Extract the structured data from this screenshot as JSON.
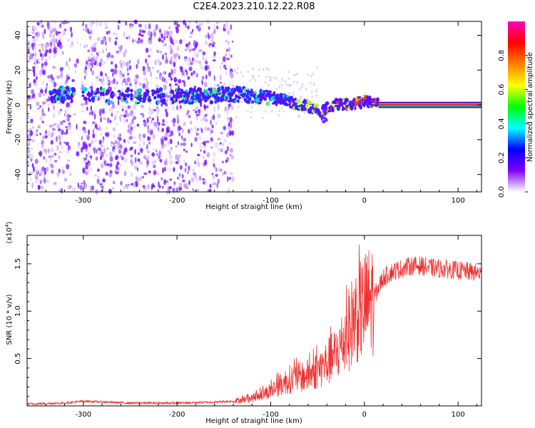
{
  "title": "C2E4.2023.210.12.22.R08",
  "chart_data": [
    {
      "type": "heatmap",
      "xlabel": "Height of straight line (km)",
      "ylabel": "Frequency (Hz)",
      "xlim": [
        -360,
        125
      ],
      "ylim": [
        -50,
        48
      ],
      "xticks": [
        -300,
        -200,
        -100,
        0,
        100
      ],
      "yticks": [
        -40,
        -20,
        0,
        20,
        40
      ],
      "colorbar": {
        "label": "Normalized spectral amplitude",
        "range": [
          0,
          1
        ],
        "ticks": [
          "0.0",
          "0.2",
          "0.4",
          "0.6",
          "0.8"
        ],
        "colors": [
          "#ffffff",
          "#7f00ff",
          "#0000ff",
          "#00ffff",
          "#00ff00",
          "#ffff00",
          "#ff8000",
          "#ff0000",
          "#ff00c0"
        ]
      },
      "ridge": {
        "x": [
          -335,
          -320,
          -300,
          -250,
          -200,
          -170,
          -150,
          -130,
          -110,
          -100,
          -90,
          -75,
          -60,
          -45,
          -40,
          -30,
          -20,
          -10,
          0,
          10,
          125
        ],
        "y": [
          6,
          6,
          6,
          5,
          5,
          5,
          6,
          6,
          5,
          4,
          3,
          1,
          -1,
          -4,
          -2,
          0,
          0,
          1,
          2,
          1,
          0
        ]
      },
      "noise_extent": [
        -360,
        -140
      ],
      "steady_tone_from": 15
    },
    {
      "type": "line",
      "xlabel": "Height of straight line (km)",
      "ylabel": "SNR (10 * v/v)",
      "y_multiplier": "(x10",
      "y_multiplier_exp": "4",
      "y_multiplier_close": ")",
      "xlim": [
        -360,
        125
      ],
      "ylim": [
        0,
        1.8
      ],
      "xticks": [
        -300,
        -200,
        -100,
        0,
        100
      ],
      "yticks": [
        0.5,
        1.0,
        1.5
      ],
      "ytick_labels": [
        "0.5",
        "1.0",
        "1.5"
      ],
      "color": "#f03030",
      "series": [
        {
          "x": [
            -360,
            -320,
            -300,
            -250,
            -200,
            -160,
            -140,
            -120,
            -110,
            -100,
            -90,
            -80,
            -70,
            -60,
            -50,
            -40,
            -30,
            -20,
            -15,
            -10,
            -5,
            0,
            10,
            20,
            30,
            40,
            50,
            60,
            70,
            80,
            90,
            100,
            110,
            125
          ],
          "values": [
            0.02,
            0.03,
            0.05,
            0.03,
            0.03,
            0.04,
            0.05,
            0.08,
            0.12,
            0.16,
            0.22,
            0.28,
            0.3,
            0.32,
            0.38,
            0.45,
            0.55,
            0.72,
            0.85,
            0.95,
            1.0,
            1.05,
            1.15,
            1.35,
            1.42,
            1.45,
            1.48,
            1.48,
            1.46,
            1.45,
            1.44,
            1.43,
            1.42,
            1.4
          ]
        }
      ]
    }
  ]
}
